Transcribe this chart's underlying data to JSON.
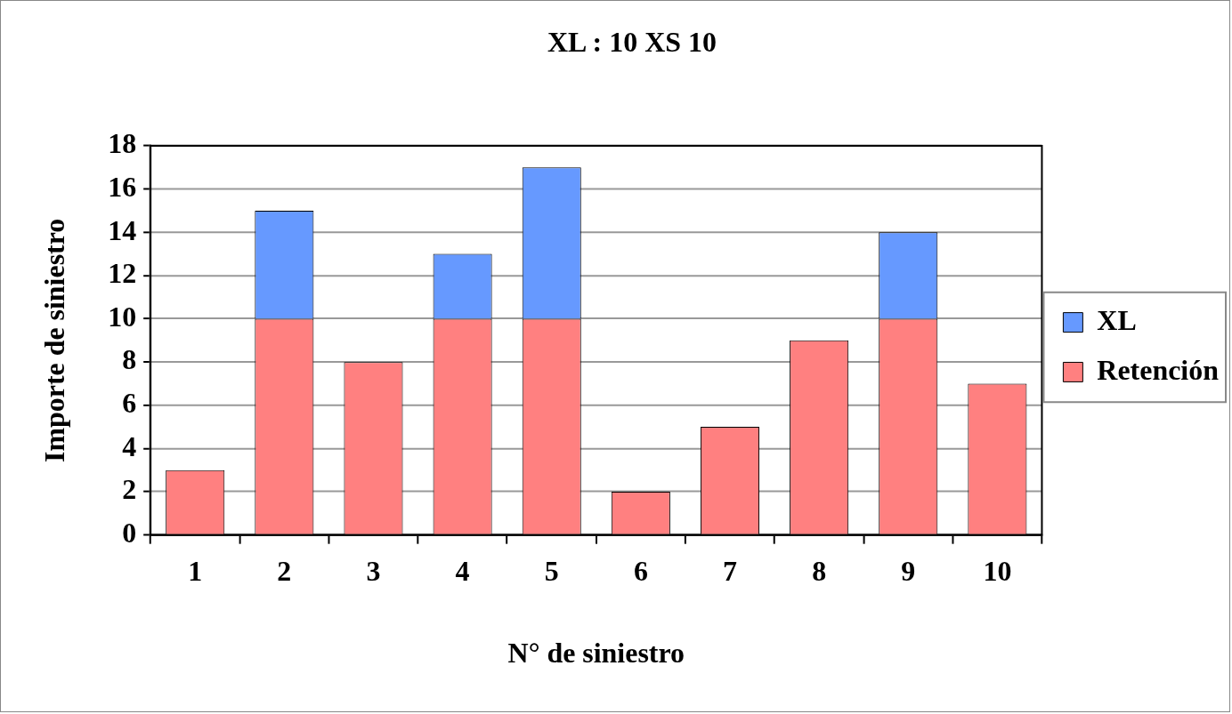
{
  "chart_data": {
    "type": "bar",
    "title": "XL : 10 XS 10",
    "xlabel": "N° de siniestro",
    "ylabel": "Importe de siniestro",
    "categories": [
      "1",
      "2",
      "3",
      "4",
      "5",
      "6",
      "7",
      "8",
      "9",
      "10"
    ],
    "stacked": true,
    "series": [
      {
        "name": "Retención",
        "color": "#ff8080",
        "values": [
          3,
          10,
          8,
          10,
          10,
          2,
          5,
          9,
          10,
          7
        ]
      },
      {
        "name": "XL",
        "color": "#6699ff",
        "values": [
          null,
          5,
          null,
          3,
          7,
          null,
          null,
          null,
          4,
          null
        ]
      }
    ],
    "ylim": [
      0,
      18
    ],
    "yticks": [
      0,
      2,
      4,
      6,
      8,
      10,
      12,
      14,
      16,
      18
    ],
    "grid": "y",
    "legend": "right"
  }
}
